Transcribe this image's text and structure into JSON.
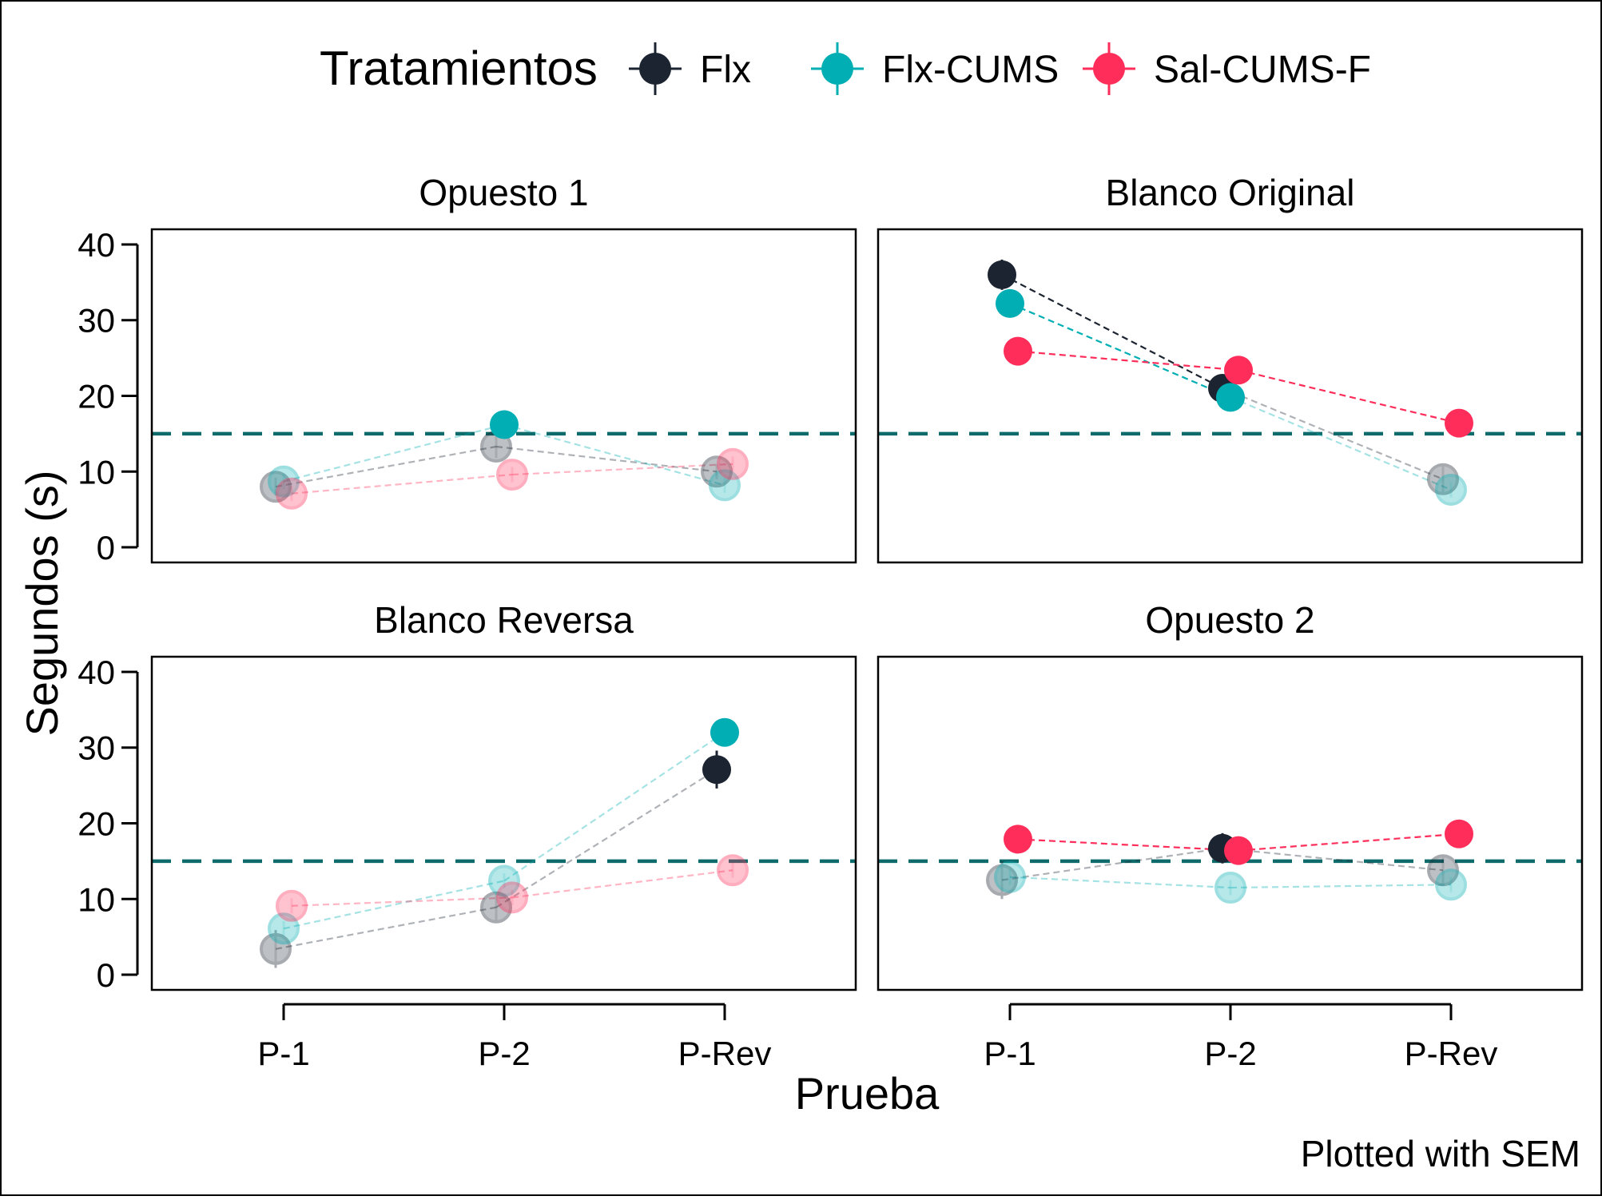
{
  "chart_data": {
    "type": "scatter",
    "legend": {
      "title": "Tratamientos",
      "position": "top",
      "entries": [
        {
          "name": "Flx",
          "color": "#1b2430"
        },
        {
          "name": "Flx-CUMS",
          "color": "#00aeb3"
        },
        {
          "name": "Sal-CUMS-F",
          "color": "#ff2d5a"
        }
      ]
    },
    "xlabel": "Prueba",
    "ylabel": "Segundos (s)",
    "caption": "Plotted with SEM",
    "categories": [
      "P-1",
      "P-2",
      "P-Rev"
    ],
    "ylim": [
      -2,
      42
    ],
    "yticks": [
      0,
      10,
      20,
      30,
      40
    ],
    "reference_line": {
      "y": 15,
      "style": "dashed",
      "color": "#0e6b6b"
    },
    "grid": false,
    "panels": [
      {
        "title": "Opuesto 1",
        "series": [
          {
            "name": "Flx",
            "values": [
              8.0,
              13.3,
              10.0
            ],
            "sem": [
              1.2,
              1.5,
              1.0
            ],
            "highlight": [
              false,
              false,
              false
            ]
          },
          {
            "name": "Flx-CUMS",
            "values": [
              8.7,
              16.2,
              8.2
            ],
            "sem": [
              1.0,
              1.0,
              1.0
            ],
            "highlight": [
              false,
              true,
              false
            ]
          },
          {
            "name": "Sal-CUMS-F",
            "values": [
              7.1,
              9.6,
              11.0
            ],
            "sem": [
              1.0,
              1.0,
              1.0
            ],
            "highlight": [
              false,
              false,
              false
            ]
          }
        ]
      },
      {
        "title": "Blanco Original",
        "series": [
          {
            "name": "Flx",
            "values": [
              36.0,
              21.0,
              9.0
            ],
            "sem": [
              2.0,
              1.2,
              2.0
            ],
            "highlight": [
              true,
              true,
              false
            ]
          },
          {
            "name": "Flx-CUMS",
            "values": [
              32.2,
              19.8,
              7.6
            ],
            "sem": [
              1.5,
              1.0,
              1.0
            ],
            "highlight": [
              true,
              true,
              false
            ]
          },
          {
            "name": "Sal-CUMS-F",
            "values": [
              25.9,
              23.4,
              16.4
            ],
            "sem": [
              1.5,
              1.5,
              1.5
            ],
            "highlight": [
              true,
              true,
              true
            ]
          }
        ]
      },
      {
        "title": "Blanco Reversa",
        "series": [
          {
            "name": "Flx",
            "values": [
              3.4,
              8.9,
              27.1
            ],
            "sem": [
              2.5,
              2.0,
              2.5
            ],
            "highlight": [
              false,
              false,
              true
            ]
          },
          {
            "name": "Flx-CUMS",
            "values": [
              6.1,
              12.4,
              32.0
            ],
            "sem": [
              1.0,
              1.0,
              1.0
            ],
            "highlight": [
              false,
              false,
              true
            ]
          },
          {
            "name": "Sal-CUMS-F",
            "values": [
              9.1,
              10.2,
              13.8
            ],
            "sem": [
              1.0,
              1.0,
              1.0
            ],
            "highlight": [
              false,
              false,
              false
            ]
          }
        ]
      },
      {
        "title": "Opuesto 2",
        "series": [
          {
            "name": "Flx",
            "values": [
              12.5,
              16.7,
              13.8
            ],
            "sem": [
              2.5,
              2.0,
              2.0
            ],
            "highlight": [
              false,
              true,
              false
            ]
          },
          {
            "name": "Flx-CUMS",
            "values": [
              12.9,
              11.5,
              11.9
            ],
            "sem": [
              1.0,
              1.0,
              1.0
            ],
            "highlight": [
              false,
              false,
              false
            ]
          },
          {
            "name": "Sal-CUMS-F",
            "values": [
              17.9,
              16.4,
              18.6
            ],
            "sem": [
              1.5,
              1.5,
              1.5
            ],
            "highlight": [
              true,
              true,
              true
            ]
          }
        ]
      }
    ]
  }
}
